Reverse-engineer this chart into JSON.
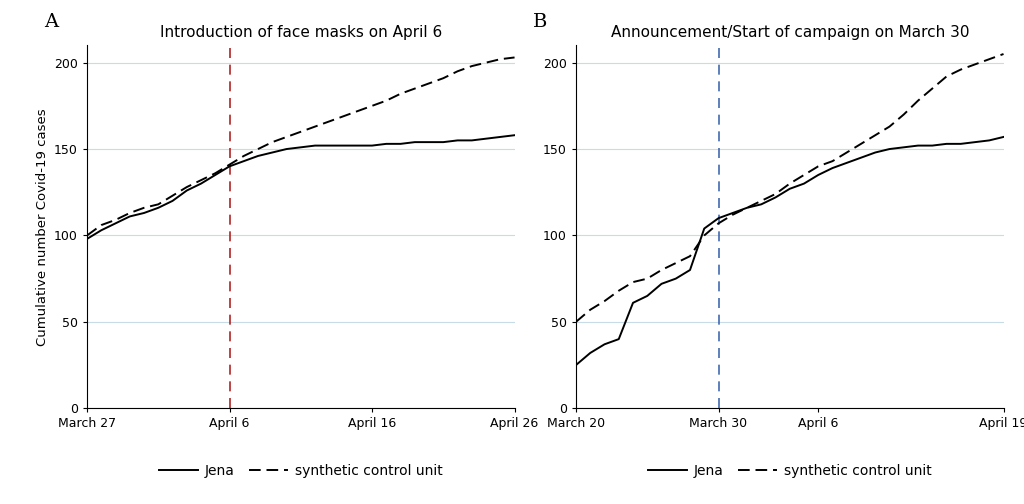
{
  "panel_A": {
    "title": "Introduction of face masks on April 6",
    "vline_x": 10,
    "vline_color": "#b22222",
    "xtick_labels": [
      "March 27",
      "April 6",
      "April 16",
      "April 26"
    ],
    "xtick_positions": [
      0,
      10,
      20,
      30
    ],
    "ylim": [
      0,
      210
    ],
    "yticks": [
      0,
      50,
      100,
      150,
      200
    ],
    "jena": [
      [
        0,
        98
      ],
      [
        1,
        103
      ],
      [
        2,
        107
      ],
      [
        3,
        111
      ],
      [
        4,
        113
      ],
      [
        5,
        116
      ],
      [
        6,
        120
      ],
      [
        7,
        126
      ],
      [
        8,
        130
      ],
      [
        9,
        135
      ],
      [
        10,
        140
      ],
      [
        11,
        143
      ],
      [
        12,
        146
      ],
      [
        13,
        148
      ],
      [
        14,
        150
      ],
      [
        15,
        151
      ],
      [
        16,
        152
      ],
      [
        17,
        152
      ],
      [
        18,
        152
      ],
      [
        19,
        152
      ],
      [
        20,
        152
      ],
      [
        21,
        153
      ],
      [
        22,
        153
      ],
      [
        23,
        154
      ],
      [
        24,
        154
      ],
      [
        25,
        154
      ],
      [
        26,
        155
      ],
      [
        27,
        155
      ],
      [
        28,
        156
      ],
      [
        29,
        157
      ],
      [
        30,
        158
      ]
    ],
    "synthetic": [
      [
        0,
        100
      ],
      [
        1,
        106
      ],
      [
        2,
        109
      ],
      [
        3,
        113
      ],
      [
        4,
        116
      ],
      [
        5,
        118
      ],
      [
        6,
        123
      ],
      [
        7,
        128
      ],
      [
        8,
        132
      ],
      [
        9,
        136
      ],
      [
        10,
        141
      ],
      [
        11,
        146
      ],
      [
        12,
        150
      ],
      [
        13,
        154
      ],
      [
        14,
        157
      ],
      [
        15,
        160
      ],
      [
        16,
        163
      ],
      [
        17,
        166
      ],
      [
        18,
        169
      ],
      [
        19,
        172
      ],
      [
        20,
        175
      ],
      [
        21,
        178
      ],
      [
        22,
        182
      ],
      [
        23,
        185
      ],
      [
        24,
        188
      ],
      [
        25,
        191
      ],
      [
        26,
        195
      ],
      [
        27,
        198
      ],
      [
        28,
        200
      ],
      [
        29,
        202
      ],
      [
        30,
        203
      ]
    ]
  },
  "panel_B": {
    "title": "Announcement/Start of campaign on March 30",
    "vline_x": 10,
    "vline_color": "#4169b0",
    "xtick_labels": [
      "March 20",
      "March 30",
      "April 6",
      "April 19"
    ],
    "xtick_positions": [
      0,
      10,
      17,
      30
    ],
    "ylim": [
      0,
      210
    ],
    "yticks": [
      0,
      50,
      100,
      150,
      200
    ],
    "jena": [
      [
        0,
        25
      ],
      [
        1,
        32
      ],
      [
        2,
        37
      ],
      [
        3,
        40
      ],
      [
        4,
        61
      ],
      [
        5,
        65
      ],
      [
        6,
        72
      ],
      [
        7,
        75
      ],
      [
        8,
        80
      ],
      [
        9,
        104
      ],
      [
        10,
        110
      ],
      [
        11,
        113
      ],
      [
        12,
        116
      ],
      [
        13,
        118
      ],
      [
        14,
        122
      ],
      [
        15,
        127
      ],
      [
        16,
        130
      ],
      [
        17,
        135
      ],
      [
        18,
        139
      ],
      [
        19,
        142
      ],
      [
        20,
        145
      ],
      [
        21,
        148
      ],
      [
        22,
        150
      ],
      [
        23,
        151
      ],
      [
        24,
        152
      ],
      [
        25,
        152
      ],
      [
        26,
        153
      ],
      [
        27,
        153
      ],
      [
        28,
        154
      ],
      [
        29,
        155
      ],
      [
        30,
        157
      ]
    ],
    "synthetic": [
      [
        0,
        50
      ],
      [
        1,
        57
      ],
      [
        2,
        62
      ],
      [
        3,
        68
      ],
      [
        4,
        73
      ],
      [
        5,
        75
      ],
      [
        6,
        80
      ],
      [
        7,
        84
      ],
      [
        8,
        88
      ],
      [
        9,
        100
      ],
      [
        10,
        107
      ],
      [
        11,
        112
      ],
      [
        12,
        116
      ],
      [
        13,
        120
      ],
      [
        14,
        124
      ],
      [
        15,
        130
      ],
      [
        16,
        135
      ],
      [
        17,
        140
      ],
      [
        18,
        143
      ],
      [
        19,
        148
      ],
      [
        20,
        153
      ],
      [
        21,
        158
      ],
      [
        22,
        163
      ],
      [
        23,
        170
      ],
      [
        24,
        178
      ],
      [
        25,
        185
      ],
      [
        26,
        192
      ],
      [
        27,
        196
      ],
      [
        28,
        199
      ],
      [
        29,
        202
      ],
      [
        30,
        205
      ]
    ]
  },
  "ylabel": "Cumulative number Covid-19 cases",
  "line_color": "#000000",
  "grid_color": "#c8dce8",
  "background_color": "#ffffff",
  "legend_items": [
    "Jena",
    "synthetic control unit"
  ],
  "panel_labels": [
    "A",
    "B"
  ],
  "title_fontsize": 11,
  "label_fontsize": 9.5,
  "tick_fontsize": 9,
  "legend_fontsize": 10,
  "xlim_A": [
    0,
    30
  ],
  "xlim_B": [
    0,
    30
  ]
}
